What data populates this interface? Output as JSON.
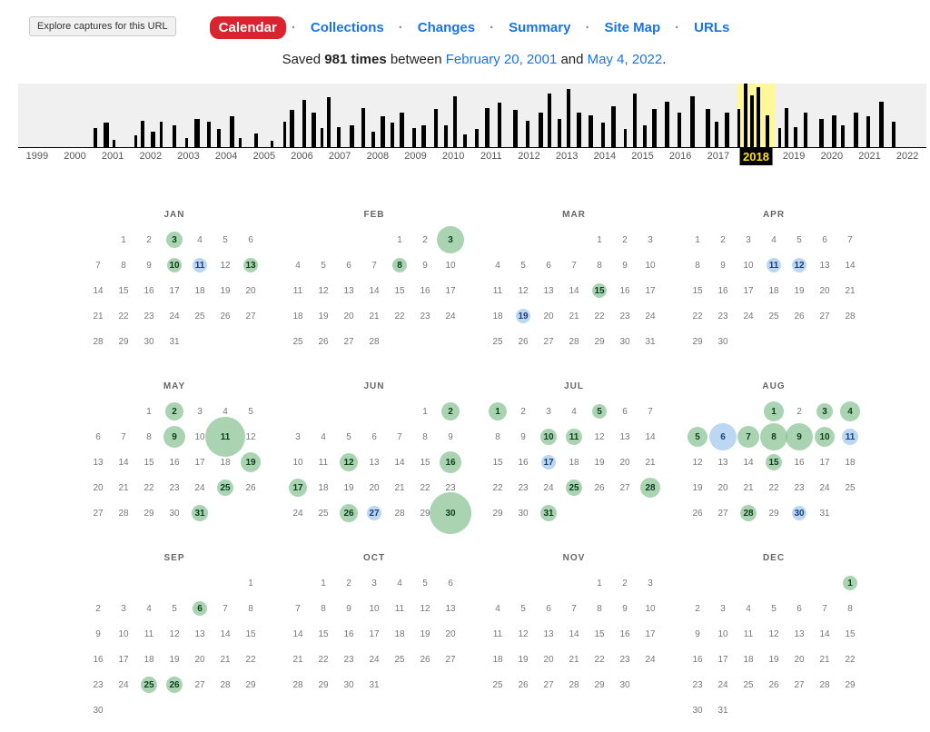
{
  "tooltip": "Explore captures for this URL",
  "nav": {
    "items": [
      {
        "label": "Calendar",
        "active": true
      },
      {
        "label": "Collections"
      },
      {
        "label": "Changes"
      },
      {
        "label": "Summary"
      },
      {
        "label": "Site Map"
      },
      {
        "label": "URLs"
      }
    ],
    "sep": "·"
  },
  "savedLine": {
    "prefix": "Saved ",
    "count": "981 times",
    "mid": " between ",
    "firstDate": "February 20, 2001",
    "and": " and ",
    "lastDate": "May 4, 2022",
    "suffix": "."
  },
  "colors": {
    "navActiveBg": "#d9232e",
    "link": "#1a73e8",
    "timelineBg": "#f0f0f0",
    "bar": "#000000",
    "highlightBand": "#fef89a",
    "selectedYearBg": "#000000",
    "selectedYearFg": "#ffe400",
    "bubbleGreen": "rgba(134,194,144,0.70)",
    "bubbleBlue": "rgba(158,198,235,0.70)"
  },
  "timeline": {
    "widthPx": 1000,
    "heightPx": 70,
    "yearStart": 1999,
    "yearEnd": 2022,
    "selectedYear": 2018,
    "years": [
      1999,
      2000,
      2001,
      2002,
      2003,
      2004,
      2005,
      2006,
      2007,
      2008,
      2009,
      2010,
      2011,
      2012,
      2013,
      2014,
      2015,
      2016,
      2017,
      2018,
      2019,
      2020,
      2021,
      2022
    ],
    "bars": [
      {
        "year": 2001,
        "slot": 0,
        "h": 0.3,
        "w": 4
      },
      {
        "year": 2001,
        "slot": 3,
        "h": 0.38,
        "w": 6
      },
      {
        "year": 2001,
        "slot": 6,
        "h": 0.12,
        "w": 3
      },
      {
        "year": 2002,
        "slot": 1,
        "h": 0.18,
        "w": 3
      },
      {
        "year": 2002,
        "slot": 3,
        "h": 0.42,
        "w": 4
      },
      {
        "year": 2002,
        "slot": 6,
        "h": 0.25,
        "w": 5
      },
      {
        "year": 2002,
        "slot": 9,
        "h": 0.4,
        "w": 3
      },
      {
        "year": 2003,
        "slot": 1,
        "h": 0.35,
        "w": 4
      },
      {
        "year": 2003,
        "slot": 5,
        "h": 0.15,
        "w": 3
      },
      {
        "year": 2003,
        "slot": 8,
        "h": 0.45,
        "w": 6
      },
      {
        "year": 2004,
        "slot": 0,
        "h": 0.4,
        "w": 4
      },
      {
        "year": 2004,
        "slot": 3,
        "h": 0.28,
        "w": 4
      },
      {
        "year": 2004,
        "slot": 7,
        "h": 0.48,
        "w": 5
      },
      {
        "year": 2004,
        "slot": 10,
        "h": 0.15,
        "w": 3
      },
      {
        "year": 2005,
        "slot": 3,
        "h": 0.22,
        "w": 4
      },
      {
        "year": 2005,
        "slot": 8,
        "h": 0.1,
        "w": 3
      },
      {
        "year": 2006,
        "slot": 0,
        "h": 0.4,
        "w": 3
      },
      {
        "year": 2006,
        "slot": 2,
        "h": 0.58,
        "w": 5
      },
      {
        "year": 2006,
        "slot": 6,
        "h": 0.75,
        "w": 4
      },
      {
        "year": 2006,
        "slot": 9,
        "h": 0.55,
        "w": 5
      },
      {
        "year": 2007,
        "slot": 0,
        "h": 0.3,
        "w": 3
      },
      {
        "year": 2007,
        "slot": 2,
        "h": 0.78,
        "w": 4
      },
      {
        "year": 2007,
        "slot": 5,
        "h": 0.32,
        "w": 4
      },
      {
        "year": 2007,
        "slot": 9,
        "h": 0.35,
        "w": 5
      },
      {
        "year": 2008,
        "slot": 1,
        "h": 0.62,
        "w": 4
      },
      {
        "year": 2008,
        "slot": 4,
        "h": 0.25,
        "w": 4
      },
      {
        "year": 2008,
        "slot": 7,
        "h": 0.48,
        "w": 5
      },
      {
        "year": 2008,
        "slot": 10,
        "h": 0.38,
        "w": 4
      },
      {
        "year": 2009,
        "slot": 1,
        "h": 0.55,
        "w": 5
      },
      {
        "year": 2009,
        "slot": 5,
        "h": 0.3,
        "w": 4
      },
      {
        "year": 2009,
        "slot": 8,
        "h": 0.35,
        "w": 5
      },
      {
        "year": 2010,
        "slot": 0,
        "h": 0.6,
        "w": 4
      },
      {
        "year": 2010,
        "slot": 3,
        "h": 0.35,
        "w": 4
      },
      {
        "year": 2010,
        "slot": 6,
        "h": 0.8,
        "w": 4
      },
      {
        "year": 2010,
        "slot": 9,
        "h": 0.2,
        "w": 4
      },
      {
        "year": 2011,
        "slot": 1,
        "h": 0.28,
        "w": 4
      },
      {
        "year": 2011,
        "slot": 4,
        "h": 0.62,
        "w": 5
      },
      {
        "year": 2011,
        "slot": 8,
        "h": 0.7,
        "w": 4
      },
      {
        "year": 2012,
        "slot": 1,
        "h": 0.58,
        "w": 5
      },
      {
        "year": 2012,
        "slot": 5,
        "h": 0.42,
        "w": 4
      },
      {
        "year": 2012,
        "slot": 9,
        "h": 0.55,
        "w": 5
      },
      {
        "year": 2013,
        "slot": 0,
        "h": 0.85,
        "w": 4
      },
      {
        "year": 2013,
        "slot": 3,
        "h": 0.45,
        "w": 4
      },
      {
        "year": 2013,
        "slot": 6,
        "h": 0.92,
        "w": 4
      },
      {
        "year": 2013,
        "slot": 9,
        "h": 0.55,
        "w": 5
      },
      {
        "year": 2014,
        "slot": 1,
        "h": 0.5,
        "w": 5
      },
      {
        "year": 2014,
        "slot": 5,
        "h": 0.38,
        "w": 4
      },
      {
        "year": 2014,
        "slot": 8,
        "h": 0.65,
        "w": 5
      },
      {
        "year": 2015,
        "slot": 0,
        "h": 0.28,
        "w": 3
      },
      {
        "year": 2015,
        "slot": 3,
        "h": 0.85,
        "w": 4
      },
      {
        "year": 2015,
        "slot": 6,
        "h": 0.35,
        "w": 4
      },
      {
        "year": 2015,
        "slot": 9,
        "h": 0.6,
        "w": 5
      },
      {
        "year": 2016,
        "slot": 1,
        "h": 0.72,
        "w": 5
      },
      {
        "year": 2016,
        "slot": 5,
        "h": 0.55,
        "w": 4
      },
      {
        "year": 2016,
        "slot": 9,
        "h": 0.8,
        "w": 5
      },
      {
        "year": 2017,
        "slot": 2,
        "h": 0.6,
        "w": 5
      },
      {
        "year": 2017,
        "slot": 5,
        "h": 0.4,
        "w": 4
      },
      {
        "year": 2017,
        "slot": 8,
        "h": 0.55,
        "w": 5
      },
      {
        "year": 2018,
        "slot": 0,
        "h": 0.6,
        "w": 3
      },
      {
        "year": 2018,
        "slot": 2,
        "h": 1.0,
        "w": 4
      },
      {
        "year": 2018,
        "slot": 4,
        "h": 0.82,
        "w": 4
      },
      {
        "year": 2018,
        "slot": 6,
        "h": 0.95,
        "w": 4
      },
      {
        "year": 2018,
        "slot": 9,
        "h": 0.5,
        "w": 4
      },
      {
        "year": 2019,
        "slot": 1,
        "h": 0.3,
        "w": 3
      },
      {
        "year": 2019,
        "slot": 3,
        "h": 0.62,
        "w": 4
      },
      {
        "year": 2019,
        "slot": 6,
        "h": 0.32,
        "w": 4
      },
      {
        "year": 2019,
        "slot": 9,
        "h": 0.55,
        "w": 4
      },
      {
        "year": 2020,
        "slot": 2,
        "h": 0.45,
        "w": 5
      },
      {
        "year": 2020,
        "slot": 6,
        "h": 0.5,
        "w": 5
      },
      {
        "year": 2020,
        "slot": 9,
        "h": 0.35,
        "w": 4
      },
      {
        "year": 2021,
        "slot": 1,
        "h": 0.55,
        "w": 5
      },
      {
        "year": 2021,
        "slot": 5,
        "h": 0.48,
        "w": 4
      },
      {
        "year": 2021,
        "slot": 9,
        "h": 0.72,
        "w": 5
      },
      {
        "year": 2022,
        "slot": 1,
        "h": 0.4,
        "w": 4
      }
    ]
  },
  "calendar": {
    "year": 2018,
    "months": [
      {
        "name": "JAN",
        "firstDow": 1,
        "days": 31,
        "captures": [
          {
            "d": 3,
            "c": "g",
            "s": 18
          },
          {
            "d": 10,
            "c": "g",
            "s": 16
          },
          {
            "d": 11,
            "c": "b",
            "s": 16
          },
          {
            "d": 13,
            "c": "g",
            "s": 16
          }
        ]
      },
      {
        "name": "FEB",
        "firstDow": 4,
        "days": 28,
        "captures": [
          {
            "d": 3,
            "c": "g",
            "s": 30
          },
          {
            "d": 8,
            "c": "g",
            "s": 16
          }
        ]
      },
      {
        "name": "MAR",
        "firstDow": 4,
        "days": 31,
        "captures": [
          {
            "d": 15,
            "c": "g",
            "s": 16
          },
          {
            "d": 19,
            "c": "b",
            "s": 16
          }
        ]
      },
      {
        "name": "APR",
        "firstDow": 0,
        "days": 30,
        "captures": [
          {
            "d": 11,
            "c": "b",
            "s": 16
          },
          {
            "d": 12,
            "c": "b",
            "s": 16
          }
        ]
      },
      {
        "name": "MAY",
        "firstDow": 2,
        "days": 31,
        "captures": [
          {
            "d": 2,
            "c": "g",
            "s": 20
          },
          {
            "d": 9,
            "c": "g",
            "s": 24
          },
          {
            "d": 11,
            "c": "g",
            "s": 44
          },
          {
            "d": 19,
            "c": "g",
            "s": 22
          },
          {
            "d": 25,
            "c": "g",
            "s": 18
          },
          {
            "d": 31,
            "c": "g",
            "s": 18
          }
        ]
      },
      {
        "name": "JUN",
        "firstDow": 5,
        "days": 30,
        "captures": [
          {
            "d": 2,
            "c": "g",
            "s": 20
          },
          {
            "d": 12,
            "c": "g",
            "s": 20
          },
          {
            "d": 16,
            "c": "g",
            "s": 24
          },
          {
            "d": 17,
            "c": "g",
            "s": 20
          },
          {
            "d": 26,
            "c": "g",
            "s": 20
          },
          {
            "d": 27,
            "c": "b",
            "s": 16
          },
          {
            "d": 30,
            "c": "g",
            "s": 46
          }
        ]
      },
      {
        "name": "JUL",
        "firstDow": 0,
        "days": 31,
        "captures": [
          {
            "d": 1,
            "c": "g",
            "s": 20
          },
          {
            "d": 5,
            "c": "g",
            "s": 16
          },
          {
            "d": 10,
            "c": "g",
            "s": 18
          },
          {
            "d": 11,
            "c": "g",
            "s": 18
          },
          {
            "d": 17,
            "c": "b",
            "s": 16
          },
          {
            "d": 25,
            "c": "g",
            "s": 18
          },
          {
            "d": 28,
            "c": "g",
            "s": 22
          },
          {
            "d": 31,
            "c": "g",
            "s": 18
          }
        ]
      },
      {
        "name": "AUG",
        "firstDow": 3,
        "days": 31,
        "captures": [
          {
            "d": 1,
            "c": "g",
            "s": 22
          },
          {
            "d": 3,
            "c": "g",
            "s": 18
          },
          {
            "d": 4,
            "c": "g",
            "s": 22
          },
          {
            "d": 5,
            "c": "g",
            "s": 22
          },
          {
            "d": 6,
            "c": "b",
            "s": 30
          },
          {
            "d": 7,
            "c": "g",
            "s": 24
          },
          {
            "d": 8,
            "c": "g",
            "s": 30
          },
          {
            "d": 9,
            "c": "g",
            "s": 30
          },
          {
            "d": 10,
            "c": "g",
            "s": 22
          },
          {
            "d": 11,
            "c": "b",
            "s": 18
          },
          {
            "d": 15,
            "c": "g",
            "s": 18
          },
          {
            "d": 28,
            "c": "g",
            "s": 18
          },
          {
            "d": 30,
            "c": "b",
            "s": 16
          }
        ]
      },
      {
        "name": "SEP",
        "firstDow": 6,
        "days": 30,
        "captures": [
          {
            "d": 6,
            "c": "g",
            "s": 16
          },
          {
            "d": 25,
            "c": "g",
            "s": 18
          },
          {
            "d": 26,
            "c": "g",
            "s": 18
          }
        ]
      },
      {
        "name": "OCT",
        "firstDow": 1,
        "days": 31,
        "captures": []
      },
      {
        "name": "NOV",
        "firstDow": 4,
        "days": 30,
        "captures": []
      },
      {
        "name": "DEC",
        "firstDow": 6,
        "days": 31,
        "captures": [
          {
            "d": 1,
            "c": "g",
            "s": 16
          }
        ]
      }
    ]
  }
}
